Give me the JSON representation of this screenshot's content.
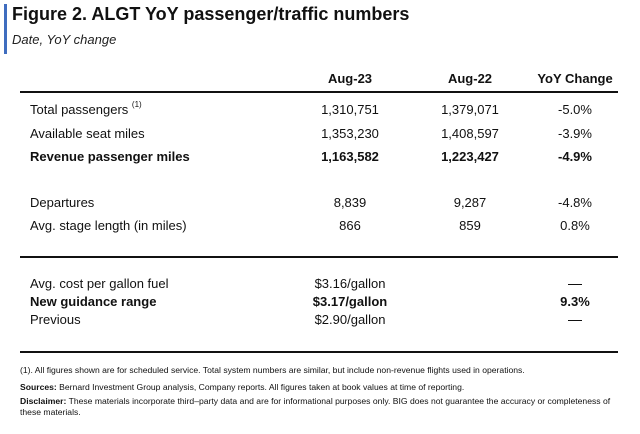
{
  "figure": {
    "title": "Figure 2. ALGT YoY passenger/traffic numbers",
    "subtitle": "Date, YoY change"
  },
  "table": {
    "headers": [
      "Aug-23",
      "Aug-22",
      "YoY Change"
    ],
    "group1": [
      {
        "label": "Total passengers",
        "note": "(1)",
        "aug23": "1,310,751",
        "aug22": "1,379,071",
        "yoy": "-5.0%"
      },
      {
        "label": "Available seat miles",
        "aug23": "1,353,230",
        "aug22": "1,408,597",
        "yoy": "-3.9%"
      },
      {
        "label": "Revenue passenger miles",
        "aug23": "1,163,582",
        "aug22": "1,223,427",
        "yoy": "-4.9%"
      }
    ],
    "group2": [
      {
        "label": "Departures",
        "aug23": "8,839",
        "aug22": "9,287",
        "yoy": "-4.8%"
      },
      {
        "label": "Avg. stage length (in miles)",
        "aug23": "866",
        "aug22": "859",
        "yoy": "0.8%"
      }
    ],
    "group3": [
      {
        "label": "Avg. cost per gallon fuel",
        "aug23": "$3.16/gallon"
      },
      {
        "label": "New guidance range",
        "aug23": "$3.17/gallon",
        "yoy": "9.3%"
      },
      {
        "label": "Previous",
        "aug23": "$2.90/gallon"
      }
    ]
  },
  "footnotes": {
    "note1": "(1). All figures shown are for scheduled service. Total system numbers are similar, but include non-revenue flights used in operations.",
    "sources_label": "Sources:",
    "sources_text": " Bernard Investment Group analysis, Company reports. All figures taken at book values at time of reporting.",
    "disclaimer_label": "Disclaimer:",
    "disclaimer_text": " These materials incorporate third–party data and are for informational purposes only. BIG does not guarantee the accuracy or completeness of these materials."
  },
  "colors": {
    "accent": "#3f6dbf"
  }
}
